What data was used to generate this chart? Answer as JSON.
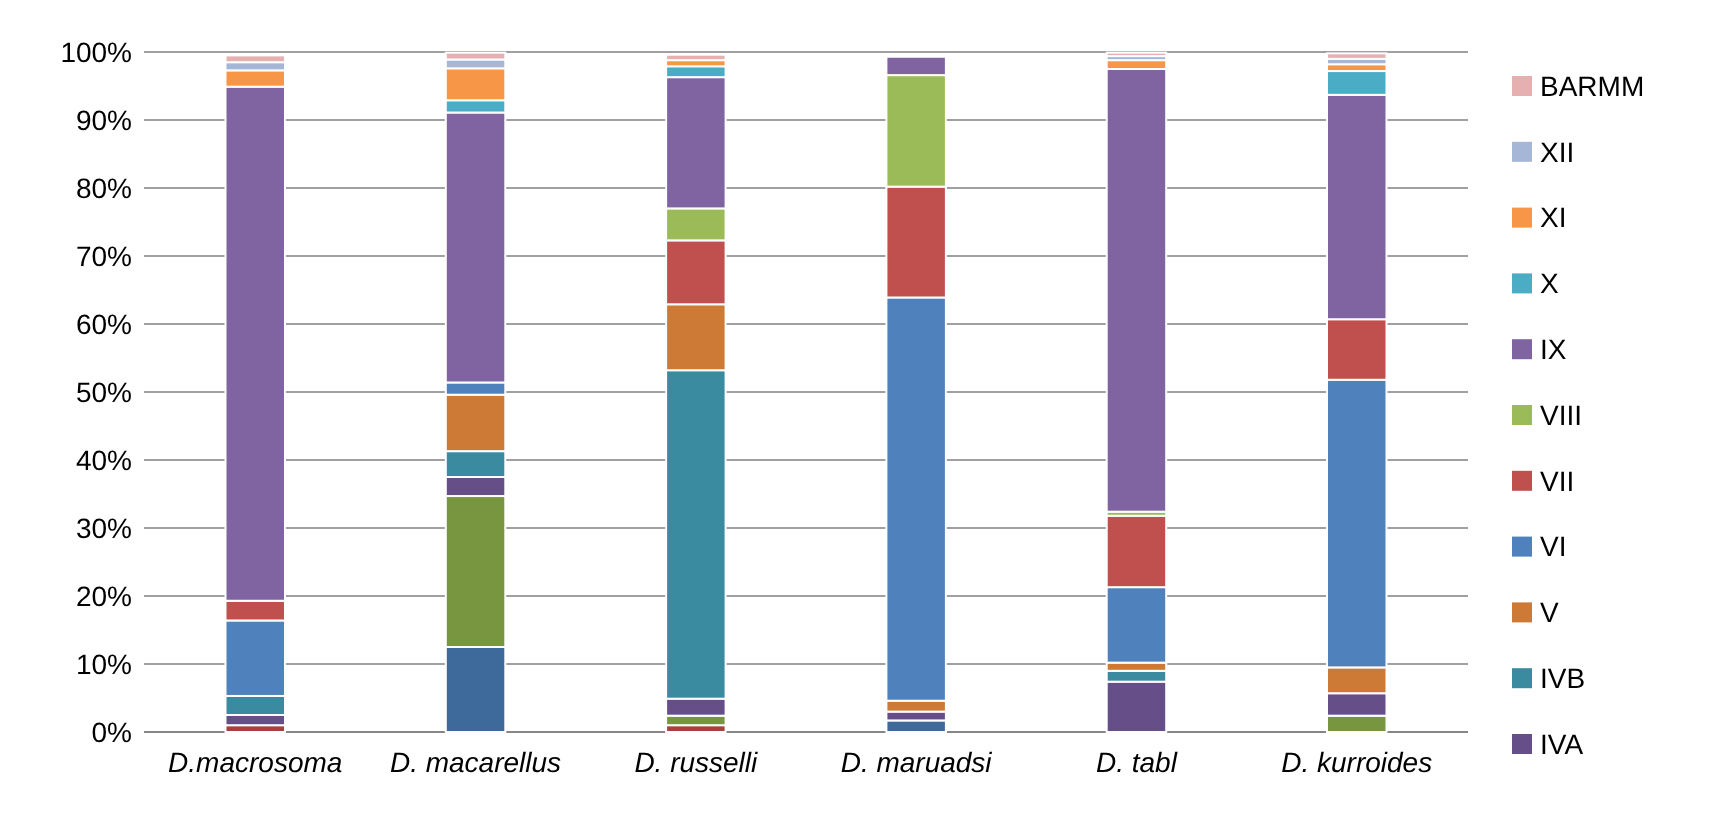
{
  "chart_data": {
    "type": "bar",
    "stacked": true,
    "categories": [
      "D.macrosoma",
      "D. macarellus",
      "D. russelli",
      "D. maruadsi",
      "D. tabl",
      "D. kurroides"
    ],
    "series": [
      {
        "color": "#3d6a9b",
        "values": [
          0,
          12.5,
          0,
          1.7,
          0,
          0
        ]
      },
      {
        "color": "#a8403d",
        "values": [
          1.0,
          0,
          1.0,
          0,
          0,
          0
        ]
      },
      {
        "color": "#77963f",
        "values": [
          0,
          22.2,
          1.4,
          0,
          0,
          2.4
        ]
      },
      {
        "name": "IVA",
        "color": "#664f88",
        "values": [
          1.5,
          2.8,
          2.5,
          1.3,
          7.4,
          3.3
        ]
      },
      {
        "name": "IVB",
        "color": "#3b8ba0",
        "values": [
          2.8,
          3.8,
          48.3,
          0,
          1.6,
          0
        ]
      },
      {
        "name": "V",
        "color": "#cc7a35",
        "values": [
          0,
          8.3,
          9.7,
          1.6,
          1.2,
          3.8
        ]
      },
      {
        "name": "VI",
        "color": "#4f81bd",
        "values": [
          11.1,
          1.8,
          0,
          59.3,
          11.1,
          42.3
        ]
      },
      {
        "name": "VII",
        "color": "#c0504d",
        "values": [
          2.9,
          0,
          9.4,
          16.3,
          10.5,
          8.9
        ]
      },
      {
        "name": "VIII",
        "color": "#9bbb59",
        "values": [
          0,
          0,
          4.7,
          16.4,
          0.6,
          0
        ]
      },
      {
        "name": "IX",
        "color": "#8064a2",
        "values": [
          75.6,
          39.7,
          19.3,
          2.7,
          65.1,
          33.0
        ]
      },
      {
        "name": "X",
        "color": "#4bacc6",
        "values": [
          0,
          1.8,
          1.6,
          0,
          0,
          3.5
        ]
      },
      {
        "name": "XI",
        "color": "#f79646",
        "values": [
          2.4,
          4.7,
          0.9,
          0,
          1.3,
          1.0
        ]
      },
      {
        "name": "XII",
        "color": "#a5b6d6",
        "values": [
          1.2,
          1.3,
          0,
          0,
          0.6,
          0.8
        ]
      },
      {
        "name": "BARMM",
        "color": "#e6b0b0",
        "values": [
          1.0,
          1.0,
          0.8,
          0,
          0.5,
          0.8
        ]
      }
    ],
    "ylim": [
      0,
      100
    ],
    "yticks": [
      {
        "value": 0,
        "label": "0%"
      },
      {
        "value": 10,
        "label": "10%"
      },
      {
        "value": 20,
        "label": "20%"
      },
      {
        "value": 30,
        "label": "30%"
      },
      {
        "value": 40,
        "label": "40%"
      },
      {
        "value": 50,
        "label": "50%"
      },
      {
        "value": 60,
        "label": "60%"
      },
      {
        "value": 70,
        "label": "70%"
      },
      {
        "value": 80,
        "label": "80%"
      },
      {
        "value": 90,
        "label": "90%"
      },
      {
        "value": 100,
        "label": "100%"
      }
    ],
    "grid": "y",
    "legend": "right"
  }
}
